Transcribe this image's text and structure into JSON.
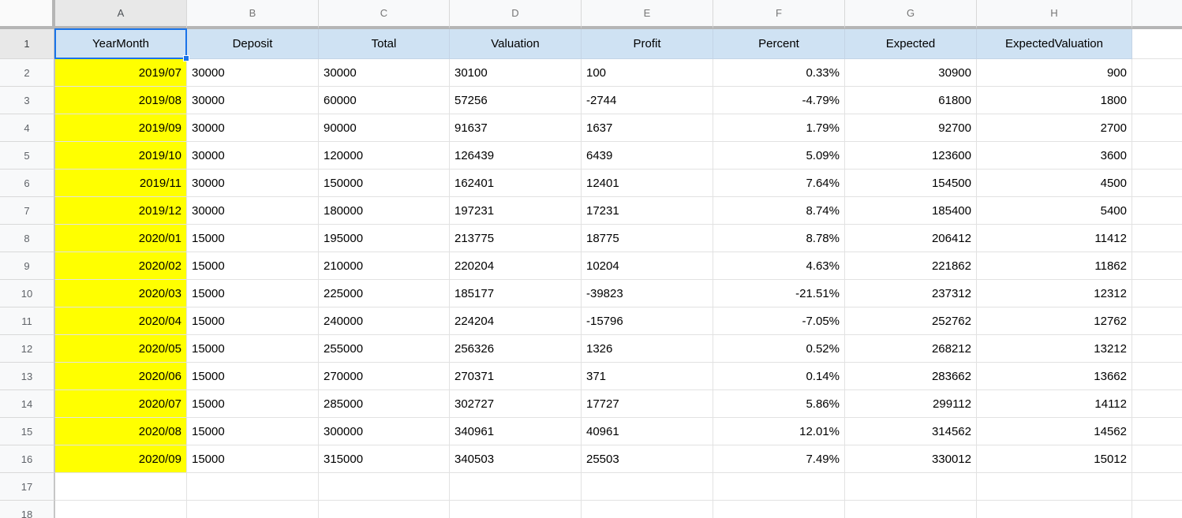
{
  "selection": {
    "active_cell": "A1",
    "active_col": "A",
    "active_row": "1"
  },
  "colors": {
    "highlight_yellow": "#ffff00",
    "header_row_blue": "#cfe2f3",
    "selection_blue": "#1a73e8",
    "gridline": "#e2e2e2",
    "header_strip_bg": "#f8f9fa",
    "header_strip_highlight": "#e8e8e8"
  },
  "column_headers": [
    "A",
    "B",
    "C",
    "D",
    "E",
    "F",
    "G",
    "H"
  ],
  "header_row": {
    "num": "1",
    "cells": [
      "YearMonth",
      "Deposit",
      "Total",
      "Valuation",
      "Profit",
      "Percent",
      "Expected",
      "ExpectedValuation"
    ]
  },
  "rows": [
    {
      "n": "2",
      "ym": "2019/07",
      "dep": "30000",
      "tot": "30000",
      "val": "30100",
      "prof": "100",
      "pct": "0.33%",
      "exp": "30900",
      "expval": "900"
    },
    {
      "n": "3",
      "ym": "2019/08",
      "dep": "30000",
      "tot": "60000",
      "val": "57256",
      "prof": "-2744",
      "pct": "-4.79%",
      "exp": "61800",
      "expval": "1800"
    },
    {
      "n": "4",
      "ym": "2019/09",
      "dep": "30000",
      "tot": "90000",
      "val": "91637",
      "prof": "1637",
      "pct": "1.79%",
      "exp": "92700",
      "expval": "2700"
    },
    {
      "n": "5",
      "ym": "2019/10",
      "dep": "30000",
      "tot": "120000",
      "val": "126439",
      "prof": "6439",
      "pct": "5.09%",
      "exp": "123600",
      "expval": "3600"
    },
    {
      "n": "6",
      "ym": "2019/11",
      "dep": "30000",
      "tot": "150000",
      "val": "162401",
      "prof": "12401",
      "pct": "7.64%",
      "exp": "154500",
      "expval": "4500"
    },
    {
      "n": "7",
      "ym": "2019/12",
      "dep": "30000",
      "tot": "180000",
      "val": "197231",
      "prof": "17231",
      "pct": "8.74%",
      "exp": "185400",
      "expval": "5400"
    },
    {
      "n": "8",
      "ym": "2020/01",
      "dep": "15000",
      "tot": "195000",
      "val": "213775",
      "prof": "18775",
      "pct": "8.78%",
      "exp": "206412",
      "expval": "11412"
    },
    {
      "n": "9",
      "ym": "2020/02",
      "dep": "15000",
      "tot": "210000",
      "val": "220204",
      "prof": "10204",
      "pct": "4.63%",
      "exp": "221862",
      "expval": "11862"
    },
    {
      "n": "10",
      "ym": "2020/03",
      "dep": "15000",
      "tot": "225000",
      "val": "185177",
      "prof": "-39823",
      "pct": "-21.51%",
      "exp": "237312",
      "expval": "12312"
    },
    {
      "n": "11",
      "ym": "2020/04",
      "dep": "15000",
      "tot": "240000",
      "val": "224204",
      "prof": "-15796",
      "pct": "-7.05%",
      "exp": "252762",
      "expval": "12762"
    },
    {
      "n": "12",
      "ym": "2020/05",
      "dep": "15000",
      "tot": "255000",
      "val": "256326",
      "prof": "1326",
      "pct": "0.52%",
      "exp": "268212",
      "expval": "13212"
    },
    {
      "n": "13",
      "ym": "2020/06",
      "dep": "15000",
      "tot": "270000",
      "val": "270371",
      "prof": "371",
      "pct": "0.14%",
      "exp": "283662",
      "expval": "13662"
    },
    {
      "n": "14",
      "ym": "2020/07",
      "dep": "15000",
      "tot": "285000",
      "val": "302727",
      "prof": "17727",
      "pct": "5.86%",
      "exp": "299112",
      "expval": "14112"
    },
    {
      "n": "15",
      "ym": "2020/08",
      "dep": "15000",
      "tot": "300000",
      "val": "340961",
      "prof": "40961",
      "pct": "12.01%",
      "exp": "314562",
      "expval": "14562"
    },
    {
      "n": "16",
      "ym": "2020/09",
      "dep": "15000",
      "tot": "315000",
      "val": "340503",
      "prof": "25503",
      "pct": "7.49%",
      "exp": "330012",
      "expval": "15012"
    }
  ],
  "empty_rows": [
    {
      "n": "17"
    },
    {
      "n": "18"
    }
  ]
}
